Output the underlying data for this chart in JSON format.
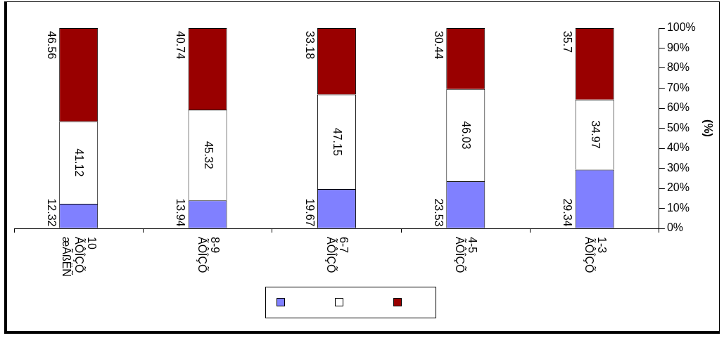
{
  "chart_data": {
    "type": "bar",
    "stacked": true,
    "categories": [
      "10\nÃÔÎÇÕ\næÃßËÑ",
      "8-9\nÃÔÎÇÕ",
      "6-7\nÃÔÎÇÕ",
      "4-5\nÃÔÎÇÕ",
      "1-3\nÃÔÎÇÕ"
    ],
    "series": [
      {
        "color": "#8080ff",
        "values": [
          12.32,
          13.94,
          19.67,
          23.53,
          29.34
        ]
      },
      {
        "color": "#ffffff",
        "values": [
          41.12,
          45.32,
          47.15,
          46.03,
          34.97
        ]
      },
      {
        "color": "#990000",
        "values": [
          46.56,
          40.74,
          33.18,
          30.44,
          35.7
        ]
      }
    ],
    "ylim": [
      0,
      100
    ],
    "yticks": [
      {
        "value": 0,
        "label": "0%"
      },
      {
        "value": 10,
        "label": "10%"
      },
      {
        "value": 20,
        "label": "20%"
      },
      {
        "value": 30,
        "label": "30%"
      },
      {
        "value": 40,
        "label": "40%"
      },
      {
        "value": 50,
        "label": "50%"
      },
      {
        "value": 60,
        "label": "60%"
      },
      {
        "value": 70,
        "label": "70%"
      },
      {
        "value": 80,
        "label": "80%"
      },
      {
        "value": 90,
        "label": "90%"
      },
      {
        "value": 100,
        "label": "100%"
      }
    ],
    "ylabel": "(%)",
    "data_labels": true
  }
}
